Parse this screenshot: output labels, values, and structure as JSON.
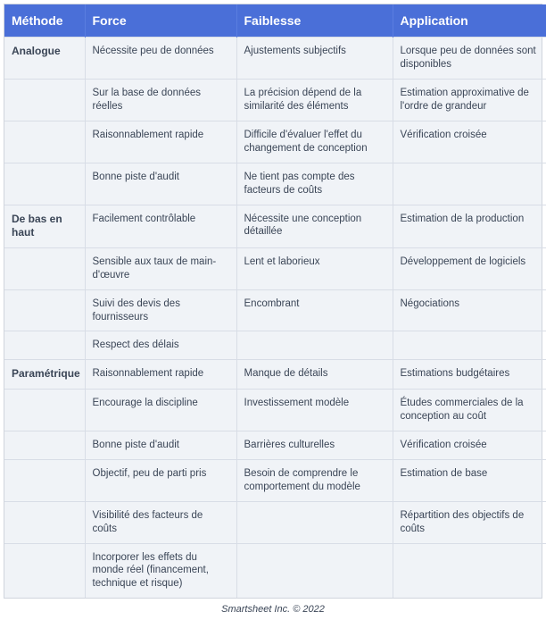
{
  "table": {
    "header_bg": "#4a6fd8",
    "header_fg": "#ffffff",
    "body_bg": "#f0f3f7",
    "border_color": "#d8dde6",
    "text_color": "#3a4556",
    "columns": [
      "Méthode",
      "Force",
      "Faiblesse",
      "Application"
    ],
    "rows": [
      [
        "Analogue",
        "Nécessite peu de données",
        "Ajustements subjectifs",
        "Lorsque peu de données sont disponibles"
      ],
      [
        "",
        "Sur la base de données réelles",
        "La précision dépend de la similarité des éléments",
        "Estimation approximative de l'ordre de grandeur"
      ],
      [
        "",
        "Raisonnablement rapide",
        "Difficile d'évaluer l'effet du changement de conception",
        "Vérification croisée"
      ],
      [
        "",
        "Bonne piste d'audit",
        "Ne tient pas compte des facteurs de coûts",
        ""
      ],
      [
        "De bas en haut",
        "Facilement contrôlable",
        "Nécessite une conception détaillée",
        "Estimation de la production"
      ],
      [
        "",
        "Sensible aux taux de main-d'œuvre",
        "Lent et laborieux",
        "Développement de logiciels"
      ],
      [
        "",
        "Suivi des devis des fournisseurs",
        "Encombrant",
        "Négociations"
      ],
      [
        "",
        "Respect des délais",
        "",
        ""
      ],
      [
        "Paramétrique",
        "Raisonnablement rapide",
        "Manque de détails",
        "Estimations budgétaires"
      ],
      [
        "",
        "Encourage la discipline",
        "Investissement modèle",
        "Études commerciales de la conception au coût"
      ],
      [
        "",
        "Bonne piste d'audit",
        "Barrières culturelles",
        "Vérification croisée"
      ],
      [
        "",
        "Objectif, peu de parti pris",
        "Besoin de comprendre le comportement du modèle",
        "Estimation de base"
      ],
      [
        "",
        "Visibilité des facteurs de coûts",
        "",
        "Répartition des objectifs de coûts"
      ],
      [
        "",
        "Incorporer les effets du monde réel (financement, technique et risque)",
        "",
        ""
      ]
    ]
  },
  "footer": "Smartsheet Inc. © 2022"
}
